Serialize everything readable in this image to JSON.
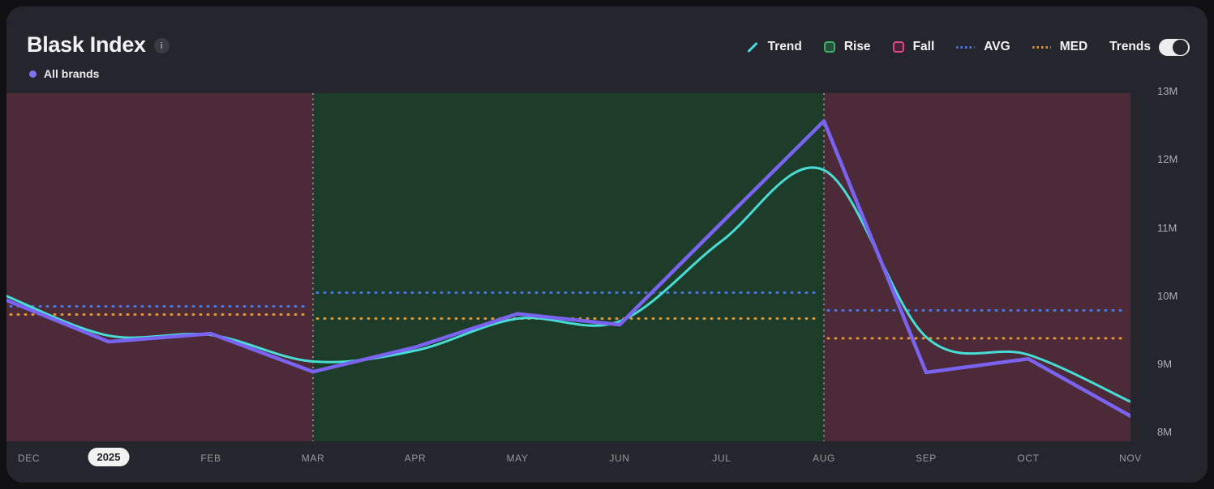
{
  "header": {
    "title": "Blask Index",
    "info_icon": "i",
    "series_label": "All brands"
  },
  "legend": {
    "items": [
      {
        "label": "Trend",
        "type": "line-diagonal",
        "color": "#48d8df",
        "fill": "none"
      },
      {
        "label": "Rise",
        "type": "square",
        "color": "#3fae6b",
        "fill": "#27503a"
      },
      {
        "label": "Fall",
        "type": "square",
        "color": "#d9488c",
        "fill": "#4a2336"
      },
      {
        "label": "AVG",
        "type": "dotted",
        "color": "#4a77e8",
        "fill": "none"
      },
      {
        "label": "MED",
        "type": "dotted",
        "color": "#dd9733",
        "fill": "none"
      }
    ],
    "trends_label": "Trends",
    "trends_toggle_on": true
  },
  "chart_data": {
    "type": "line",
    "title": "Blask Index",
    "x_categories": [
      "DEC",
      "2025",
      "FEB",
      "MAR",
      "APR",
      "MAY",
      "JUN",
      "JUL",
      "AUG",
      "SEP",
      "OCT",
      "NOV"
    ],
    "year_pill_index": 1,
    "y_tick_labels": [
      "8M",
      "9M",
      "10M",
      "11M",
      "12M",
      "13M"
    ],
    "y_tick_values": [
      8,
      9,
      10,
      11,
      12,
      13
    ],
    "ylim": [
      7.87,
      12.98
    ],
    "unit": "M",
    "grid": false,
    "legend_position": "top-right",
    "series": [
      {
        "name": "All brands",
        "color": "#7a63f1",
        "width": 4.5,
        "shape": "linear",
        "values": [
          9.94,
          9.33,
          9.45,
          8.89,
          9.25,
          9.74,
          9.58,
          11.08,
          12.57,
          8.88,
          9.08,
          8.24
        ]
      },
      {
        "name": "Trend",
        "color": "#48dcd4",
        "width": 3,
        "shape": "smooth",
        "values": [
          10.0,
          9.42,
          9.43,
          9.04,
          9.2,
          9.67,
          9.63,
          10.81,
          11.85,
          9.4,
          9.14,
          8.45
        ]
      }
    ],
    "regions": [
      {
        "type": "fall",
        "from_index": 0,
        "to_index": 3,
        "avg": 9.85,
        "med": 9.73
      },
      {
        "type": "rise",
        "from_index": 3,
        "to_index": 8,
        "avg": 10.05,
        "med": 9.67
      },
      {
        "type": "fall",
        "from_index": 8,
        "to_index": 11,
        "avg": 9.79,
        "med": 9.38
      }
    ],
    "avg_color": "#4a77e8",
    "med_color": "#dd9733",
    "rise_bg": "#1e3c2a",
    "fall_bg": "#4c2a37",
    "boundary_color": "#8b8b93"
  },
  "colors": {
    "page_bg": "#111114",
    "card_bg": "#25252d",
    "title": "#f2f2f4",
    "series_dot": "#7b73f0",
    "x_axis_label": "#98989f",
    "y_axis_label": "#aeaeb6"
  }
}
